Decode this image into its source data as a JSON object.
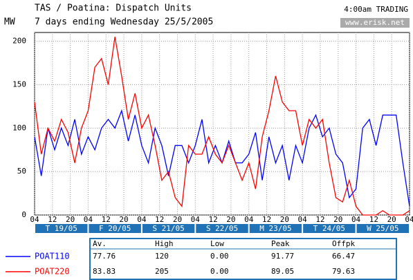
{
  "chart_data": {
    "type": "line",
    "title": "TAS / Poatina: Dispatch Units",
    "subtitle": "7 days ending Wednesday 25/5/2005",
    "y_label": "MW",
    "annotation": "4:00am TRADING",
    "source": "www.erisk.net",
    "x": [
      0,
      3,
      6,
      9,
      12,
      15,
      18,
      21,
      24,
      27,
      30,
      33,
      36,
      39,
      42,
      45,
      48,
      51,
      54,
      57,
      60,
      63,
      66,
      69,
      72,
      75,
      78,
      81,
      84,
      87,
      90,
      93,
      96,
      99,
      102,
      105,
      108,
      111,
      114,
      117,
      120,
      123,
      126,
      129,
      132,
      135,
      138,
      141,
      144,
      147,
      150,
      153,
      156,
      159,
      162,
      165,
      168
    ],
    "series": [
      {
        "name": "POAT110",
        "color": "#0000ff",
        "values": [
          90,
          45,
          100,
          75,
          100,
          80,
          110,
          70,
          90,
          75,
          100,
          110,
          100,
          120,
          85,
          115,
          80,
          60,
          100,
          80,
          45,
          80,
          80,
          60,
          80,
          110,
          60,
          80,
          60,
          85,
          60,
          60,
          70,
          95,
          40,
          90,
          60,
          80,
          40,
          80,
          60,
          100,
          115,
          90,
          100,
          70,
          60,
          20,
          30,
          100,
          110,
          80,
          115,
          115,
          115,
          60,
          10
        ]
      },
      {
        "name": "POAT220",
        "color": "#ff0000",
        "values": [
          130,
          70,
          100,
          85,
          110,
          95,
          60,
          100,
          120,
          170,
          180,
          150,
          205,
          160,
          110,
          140,
          100,
          115,
          80,
          40,
          50,
          20,
          10,
          80,
          70,
          70,
          90,
          70,
          60,
          80,
          60,
          40,
          60,
          30,
          90,
          120,
          160,
          130,
          120,
          120,
          80,
          110,
          100,
          110,
          60,
          20,
          15,
          40,
          10,
          0,
          0,
          0,
          5,
          0,
          0,
          0,
          5
        ]
      }
    ],
    "xlim": [
      0,
      168
    ],
    "xticks": [
      {
        "value": 0,
        "label": "04"
      },
      {
        "value": 8,
        "label": "12"
      },
      {
        "value": 16,
        "label": "20"
      },
      {
        "value": 24,
        "label": "04"
      },
      {
        "value": 32,
        "label": "12"
      },
      {
        "value": 40,
        "label": "20"
      },
      {
        "value": 48,
        "label": "04"
      },
      {
        "value": 56,
        "label": "12"
      },
      {
        "value": 64,
        "label": "20"
      },
      {
        "value": 72,
        "label": "04"
      },
      {
        "value": 80,
        "label": "12"
      },
      {
        "value": 88,
        "label": "20"
      },
      {
        "value": 96,
        "label": "04"
      },
      {
        "value": 104,
        "label": "12"
      },
      {
        "value": 112,
        "label": "20"
      },
      {
        "value": 120,
        "label": "04"
      },
      {
        "value": 128,
        "label": "12"
      },
      {
        "value": 136,
        "label": "20"
      },
      {
        "value": 144,
        "label": "04"
      },
      {
        "value": 152,
        "label": "12"
      },
      {
        "value": 160,
        "label": "20"
      },
      {
        "value": 168,
        "label": "04"
      }
    ],
    "days": [
      "T 19/05",
      "F 20/05",
      "S 21/05",
      "S 22/05",
      "M 23/05",
      "T 24/05",
      "W 25/05"
    ],
    "ylim": [
      0,
      210
    ],
    "yticks": [
      0,
      50,
      100,
      150,
      200
    ],
    "grid": true
  },
  "table": {
    "columns": [
      "Av.",
      "High",
      "Low",
      "Peak",
      "Offpk"
    ],
    "rows": [
      [
        "77.76",
        "120",
        "0.00",
        "91.77",
        "66.47"
      ],
      [
        "83.83",
        "205",
        "0.00",
        "89.05",
        "79.63"
      ]
    ]
  }
}
